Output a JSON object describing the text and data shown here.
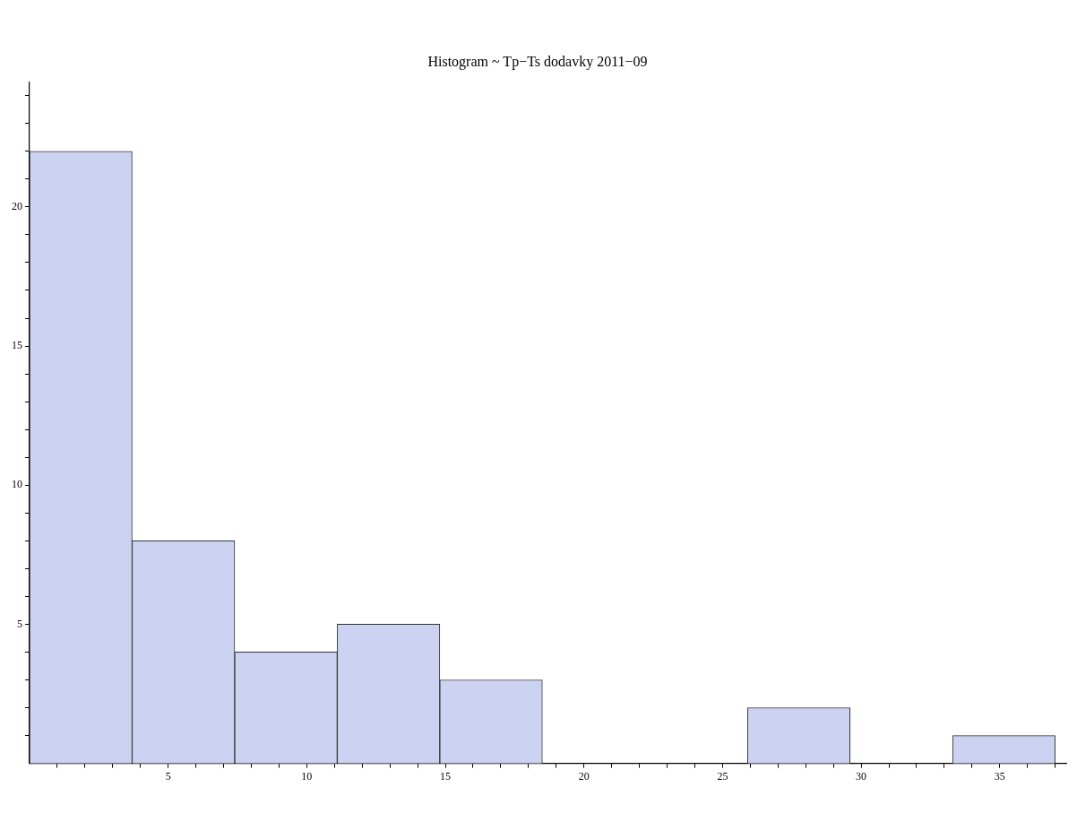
{
  "chart_data": {
    "type": "histogram",
    "title": "Histogram ~ Tp−Ts dodavky 2011−09",
    "bins": [
      0,
      3.7,
      7.4,
      11.1,
      14.8,
      18.5,
      22.2,
      25.9,
      29.6,
      33.3,
      37.0
    ],
    "values": [
      22,
      8,
      4,
      5,
      3,
      0,
      0,
      2,
      0,
      1
    ],
    "color": "#ccd3f2",
    "xlim": [
      0,
      37.4
    ],
    "xticks": [
      {
        "value": 1,
        "label": null
      },
      {
        "value": 2,
        "label": null
      },
      {
        "value": 3,
        "label": null
      },
      {
        "value": 4,
        "label": null
      },
      5,
      {
        "value": 6,
        "label": null
      },
      {
        "value": 7,
        "label": null
      },
      {
        "value": 8,
        "label": null
      },
      {
        "value": 9,
        "label": null
      },
      10,
      {
        "value": 11,
        "label": null
      },
      {
        "value": 12,
        "label": null
      },
      {
        "value": 13,
        "label": null
      },
      {
        "value": 14,
        "label": null
      },
      15,
      {
        "value": 16,
        "label": null
      },
      {
        "value": 17,
        "label": null
      },
      {
        "value": 18,
        "label": null
      },
      {
        "value": 19,
        "label": null
      },
      20,
      {
        "value": 21,
        "label": null
      },
      {
        "value": 22,
        "label": null
      },
      {
        "value": 23,
        "label": null
      },
      {
        "value": 24,
        "label": null
      },
      25,
      {
        "value": 26,
        "label": null
      },
      {
        "value": 27,
        "label": null
      },
      {
        "value": 28,
        "label": null
      },
      {
        "value": 29,
        "label": null
      },
      30,
      {
        "value": 31,
        "label": null
      },
      {
        "value": 32,
        "label": null
      },
      {
        "value": 33,
        "label": null
      },
      {
        "value": 34,
        "label": null
      },
      35,
      {
        "value": 36,
        "label": null
      },
      {
        "value": 37,
        "label": null
      }
    ],
    "ylim": [
      0,
      24.5
    ],
    "yticks": [
      {
        "value": 1,
        "label": null
      },
      {
        "value": 2,
        "label": null
      },
      {
        "value": 3,
        "label": null
      },
      {
        "value": 4,
        "label": null
      },
      5,
      {
        "value": 6,
        "label": null
      },
      {
        "value": 7,
        "label": null
      },
      {
        "value": 8,
        "label": null
      },
      {
        "value": 9,
        "label": null
      },
      10,
      {
        "value": 11,
        "label": null
      },
      {
        "value": 12,
        "label": null
      },
      {
        "value": 13,
        "label": null
      },
      {
        "value": 14,
        "label": null
      },
      15,
      {
        "value": 16,
        "label": null
      },
      {
        "value": 17,
        "label": null
      },
      {
        "value": 18,
        "label": null
      },
      {
        "value": 19,
        "label": null
      },
      20,
      {
        "value": 21,
        "label": null
      },
      {
        "value": 22,
        "label": null
      },
      {
        "value": 23,
        "label": null
      },
      {
        "value": 24,
        "label": null
      }
    ]
  }
}
